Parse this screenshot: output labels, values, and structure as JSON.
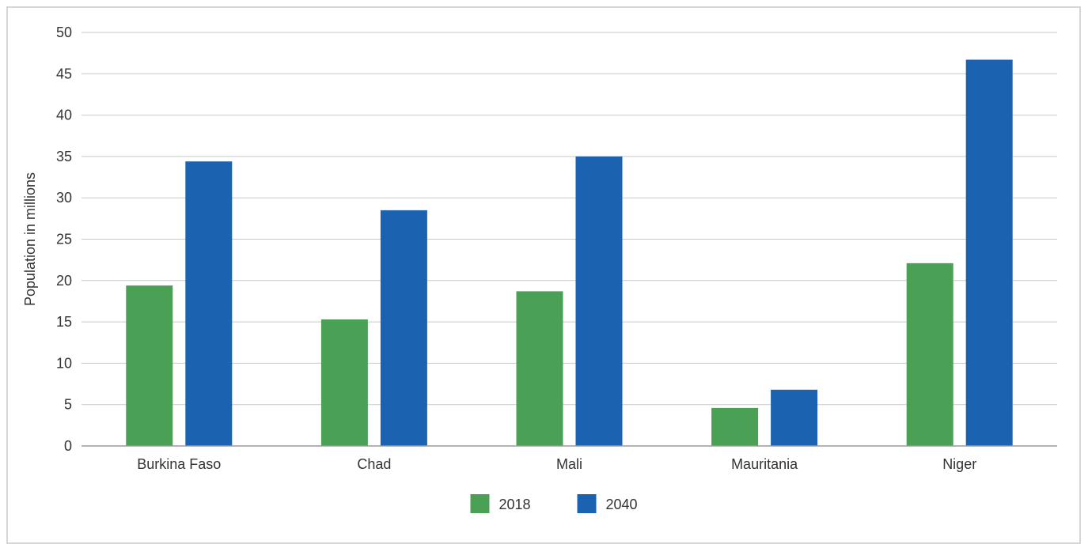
{
  "chart_data": {
    "type": "bar",
    "title": "",
    "xlabel": "",
    "ylabel": "Population in millions",
    "ylim": [
      0,
      50
    ],
    "yticks": [
      0,
      5,
      10,
      15,
      20,
      25,
      30,
      35,
      40,
      45,
      50
    ],
    "grid": true,
    "legend_position": "bottom",
    "categories": [
      "Burkina Faso",
      "Chad",
      "Mali",
      "Mauritania",
      "Niger"
    ],
    "series": [
      {
        "name": "2018",
        "color": "#4aa155",
        "values": [
          19.4,
          15.3,
          18.7,
          4.6,
          22.1
        ]
      },
      {
        "name": "2040",
        "color": "#1b62b0",
        "values": [
          34.4,
          28.5,
          35.0,
          6.8,
          46.7
        ]
      }
    ]
  }
}
